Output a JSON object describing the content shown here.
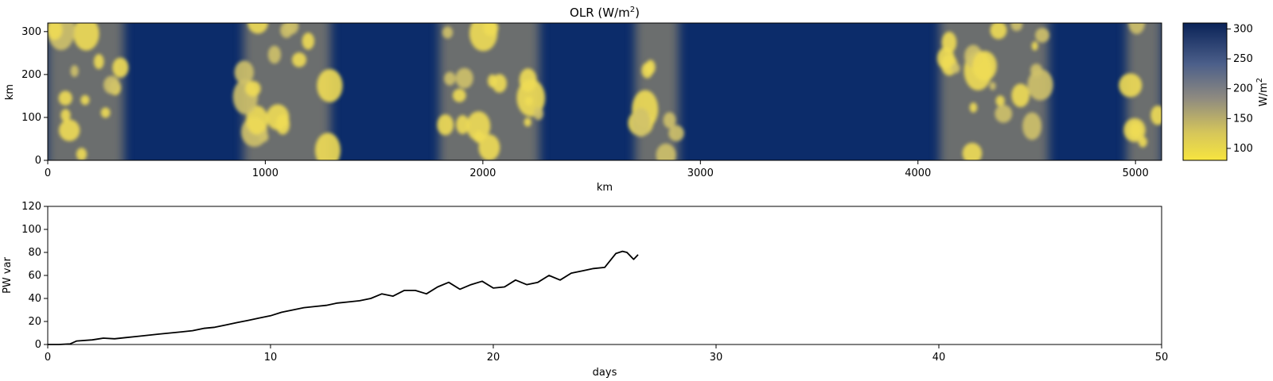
{
  "colors": {
    "olr_low": "#f4e34c",
    "olr_mid": "#8a8a86",
    "olr_high": "#0a2358",
    "line": "#000000"
  },
  "chart_data": [
    {
      "type": "heatmap",
      "title_main": "OLR (W/m",
      "title_sup": "2",
      "title_close": ")",
      "xlabel": "km",
      "ylabel": "km",
      "xlim": [
        0,
        5120
      ],
      "ylim": [
        0,
        320
      ],
      "xticks": [
        0,
        1000,
        2000,
        3000,
        4000,
        5000
      ],
      "yticks": [
        0,
        100,
        200,
        300
      ],
      "colorbar": {
        "label_main": "W/m",
        "label_sup": "2",
        "range": [
          80,
          310
        ],
        "ticks": [
          100,
          150,
          200,
          250,
          300
        ],
        "colormap": "cividis-like (yellow = low OLR, dark blue = high OLR)"
      },
      "convective_bands_km": [
        {
          "x0": 0,
          "x1": 350
        },
        {
          "x0": 900,
          "x1": 1300
        },
        {
          "x0": 1800,
          "x1": 2260
        },
        {
          "x0": 2700,
          "x1": 2900
        },
        {
          "x0": 4100,
          "x1": 4600
        },
        {
          "x0": 4960,
          "x1": 5120
        }
      ]
    },
    {
      "type": "line",
      "xlabel": "days",
      "ylabel": "PW var",
      "xlim": [
        0,
        50
      ],
      "ylim": [
        0,
        120
      ],
      "xticks": [
        0,
        10,
        20,
        30,
        40,
        50
      ],
      "yticks": [
        0,
        20,
        40,
        60,
        80,
        100,
        120
      ],
      "x": [
        0,
        0.5,
        1.0,
        1.3,
        2.0,
        2.5,
        3.0,
        3.5,
        4.0,
        4.5,
        5.0,
        5.5,
        6.0,
        6.5,
        7.0,
        7.5,
        8.0,
        8.5,
        9.0,
        9.5,
        10.0,
        10.5,
        11.0,
        11.5,
        12.0,
        12.5,
        13.0,
        13.5,
        14.0,
        14.5,
        15.0,
        15.5,
        16.0,
        16.5,
        17.0,
        17.5,
        18.0,
        18.5,
        19.0,
        19.5,
        20.0,
        20.5,
        21.0,
        21.5,
        22.0,
        22.5,
        23.0,
        23.5,
        24.0,
        24.5,
        25.0,
        25.5,
        25.8,
        26.0,
        26.3,
        26.5
      ],
      "y": [
        0,
        0,
        0.5,
        3,
        4,
        5.5,
        5,
        6,
        7,
        8,
        9,
        10,
        11,
        12,
        14,
        15,
        17,
        19,
        21,
        23,
        25,
        28,
        30,
        32,
        33,
        34,
        36,
        37,
        38,
        40,
        44,
        42,
        47,
        47,
        44,
        50,
        54,
        48,
        52,
        55,
        49,
        50,
        56,
        52,
        54,
        60,
        56,
        62,
        64,
        66,
        67,
        79,
        81,
        80,
        74,
        78
      ]
    }
  ]
}
